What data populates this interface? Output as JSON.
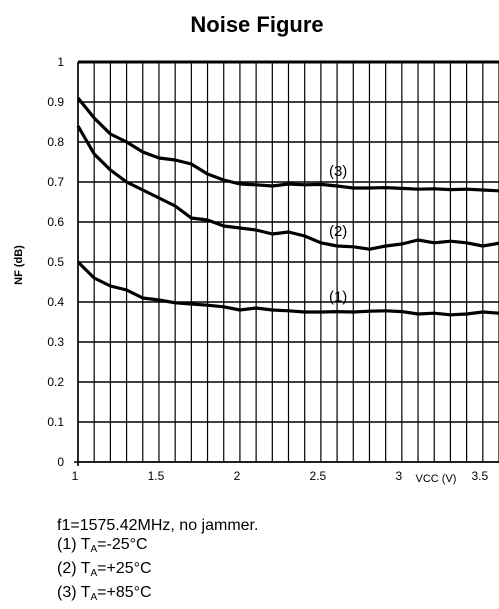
{
  "chart_data": {
    "type": "line",
    "title": "Noise Figure",
    "xlabel": "VCC (V)",
    "ylabel": "NF (dB)",
    "xlim": [
      1,
      3.6
    ],
    "ylim": [
      0,
      1
    ],
    "xticks": [
      1,
      1.5,
      2,
      2.5,
      3,
      3.5
    ],
    "xtick_labels": [
      "1",
      "1.5",
      "2",
      "2.5",
      "3",
      "3.5"
    ],
    "yticks": [
      0,
      0.1,
      0.2,
      0.3,
      0.4,
      0.5,
      0.6,
      0.7,
      0.8,
      0.9,
      1
    ],
    "ytick_labels": [
      "0",
      "0.1",
      "0.2",
      "0.3",
      "0.4",
      "0.5",
      "0.6",
      "0.7",
      "0.8",
      "0.9",
      "1"
    ],
    "grid": true,
    "series": [
      {
        "name": "(1)",
        "x": [
          1.0,
          1.1,
          1.2,
          1.3,
          1.4,
          1.5,
          1.6,
          1.7,
          1.8,
          1.9,
          2.0,
          2.1,
          2.2,
          2.3,
          2.4,
          2.5,
          2.6,
          2.7,
          2.8,
          2.9,
          3.0,
          3.1,
          3.2,
          3.3,
          3.4,
          3.5,
          3.6
        ],
        "values": [
          0.5,
          0.46,
          0.44,
          0.43,
          0.41,
          0.405,
          0.398,
          0.395,
          0.392,
          0.388,
          0.38,
          0.385,
          0.38,
          0.378,
          0.375,
          0.375,
          0.376,
          0.375,
          0.377,
          0.378,
          0.376,
          0.37,
          0.372,
          0.368,
          0.37,
          0.375,
          0.372
        ]
      },
      {
        "name": "(2)",
        "x": [
          1.0,
          1.1,
          1.2,
          1.3,
          1.4,
          1.5,
          1.6,
          1.7,
          1.8,
          1.9,
          2.0,
          2.1,
          2.2,
          2.3,
          2.4,
          2.5,
          2.6,
          2.7,
          2.8,
          2.9,
          3.0,
          3.1,
          3.2,
          3.3,
          3.4,
          3.5,
          3.6
        ],
        "values": [
          0.84,
          0.77,
          0.73,
          0.7,
          0.68,
          0.66,
          0.64,
          0.61,
          0.605,
          0.59,
          0.585,
          0.58,
          0.57,
          0.575,
          0.565,
          0.548,
          0.54,
          0.538,
          0.532,
          0.54,
          0.545,
          0.555,
          0.548,
          0.552,
          0.548,
          0.54,
          0.547
        ]
      },
      {
        "name": "(3)",
        "x": [
          1.0,
          1.1,
          1.2,
          1.3,
          1.4,
          1.5,
          1.6,
          1.7,
          1.8,
          1.9,
          2.0,
          2.1,
          2.2,
          2.3,
          2.4,
          2.5,
          2.6,
          2.7,
          2.8,
          2.9,
          3.0,
          3.1,
          3.2,
          3.3,
          3.4,
          3.5,
          3.6
        ],
        "values": [
          0.91,
          0.86,
          0.82,
          0.8,
          0.775,
          0.76,
          0.755,
          0.745,
          0.72,
          0.705,
          0.695,
          0.693,
          0.69,
          0.695,
          0.693,
          0.694,
          0.69,
          0.685,
          0.685,
          0.686,
          0.684,
          0.682,
          0.683,
          0.681,
          0.682,
          0.68,
          0.678
        ]
      }
    ]
  },
  "notes": {
    "line1": "f1=1575.42MHz, no jammer.",
    "line2_prefix": "(1) T",
    "line2_sub": "A",
    "line2_suffix": "=-25°C",
    "line3_prefix": "(2) T",
    "line3_sub": "A",
    "line3_suffix": "=+25°C",
    "line4_prefix": "(3) T",
    "line4_sub": "A",
    "line4_suffix": "=+85°C"
  }
}
